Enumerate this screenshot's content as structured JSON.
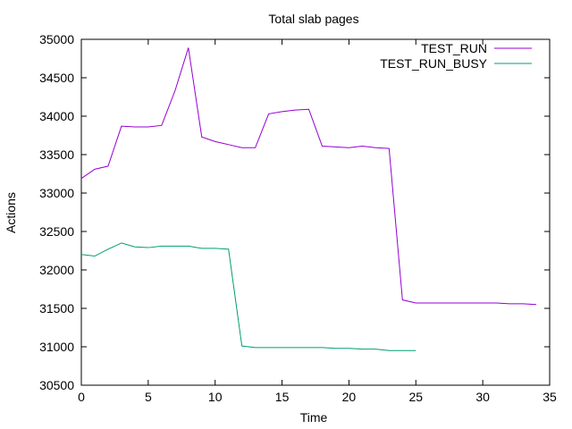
{
  "chart_data": {
    "type": "line",
    "title": "Total slab pages",
    "xlabel": "Time",
    "ylabel": "Actions",
    "xlim": [
      0,
      35
    ],
    "ylim": [
      30500,
      35000
    ],
    "xticks": [
      0,
      5,
      10,
      15,
      20,
      25,
      30,
      35
    ],
    "yticks": [
      30500,
      31000,
      31500,
      32000,
      32500,
      33000,
      33500,
      34000,
      34500,
      35000
    ],
    "grid": false,
    "legend": "top-right",
    "series": [
      {
        "name": "TEST_RUN",
        "color": "#9400d3",
        "x": [
          0,
          1,
          2,
          3,
          4,
          5,
          6,
          7,
          8,
          9,
          10,
          11,
          12,
          13,
          14,
          15,
          16,
          17,
          18,
          19,
          20,
          21,
          22,
          23,
          24,
          25,
          26,
          27,
          28,
          29,
          30,
          31,
          32,
          33,
          34
        ],
        "y": [
          33190,
          33310,
          33350,
          33870,
          33860,
          33860,
          33880,
          34330,
          34890,
          33730,
          33670,
          33630,
          33590,
          33590,
          34030,
          34060,
          34080,
          34090,
          33610,
          33600,
          33590,
          33610,
          33590,
          33580,
          31610,
          31570,
          31570,
          31570,
          31570,
          31570,
          31570,
          31570,
          31560,
          31560,
          31550
        ]
      },
      {
        "name": "TEST_RUN_BUSY",
        "color": "#009e73",
        "x": [
          0,
          1,
          2,
          3,
          4,
          5,
          6,
          7,
          8,
          9,
          10,
          11,
          12,
          13,
          14,
          15,
          16,
          17,
          18,
          19,
          20,
          21,
          22,
          23,
          24,
          25
        ],
        "y": [
          32200,
          32180,
          32270,
          32350,
          32300,
          32290,
          32310,
          32310,
          32310,
          32280,
          32280,
          32270,
          31010,
          30990,
          30990,
          30990,
          30990,
          30990,
          30990,
          30980,
          30980,
          30970,
          30970,
          30950,
          30950,
          30950
        ]
      }
    ]
  }
}
